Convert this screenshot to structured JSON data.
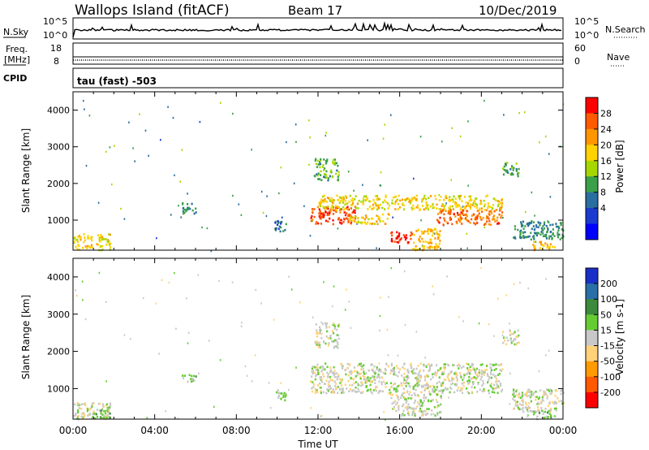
{
  "header": {
    "station": "Wallops Island (fitACF)",
    "beam": "Beam 17",
    "date": "10/Dec/2019"
  },
  "nsky_panel": {
    "left_label": "N.Sky",
    "left_ticks": [
      "10^5",
      "10^0"
    ],
    "right_ticks": [
      "10^5",
      "10^0"
    ],
    "right_label": "N.Search"
  },
  "freq_panel": {
    "left_label_1": "Freq.",
    "left_label_2": "[MHz]",
    "left_ticks": [
      "18",
      "8"
    ],
    "right_ticks": [
      "60",
      "0"
    ],
    "right_label": "Nave"
  },
  "cpid_panel": {
    "left_label": "CPID",
    "text": "tau (fast) -503"
  },
  "power_panel": {
    "ylabel": "Slant Range [km]",
    "colorbar_label": "Power [dB]",
    "colorbar_ticks": [
      "28",
      "24",
      "20",
      "16",
      "12",
      "8",
      "4"
    ],
    "colorbar_colors": [
      "#ff0000",
      "#ff5a00",
      "#ff9600",
      "#ffd200",
      "#a6d800",
      "#3aa04a",
      "#2a6fa0",
      "#1a3ad0",
      "#0000ff"
    ]
  },
  "velocity_panel": {
    "ylabel": "Slant Range [km]",
    "colorbar_label": "Velocity [m s-1]",
    "colorbar_ticks": [
      "200",
      "100",
      "50",
      "15",
      "-15",
      "-50",
      "-100",
      "-200"
    ],
    "colorbar_colors": [
      "#1a2fc8",
      "#2a6fa8",
      "#3c8a3c",
      "#66cc33",
      "#c8c8c8",
      "#ffd27a",
      "#ff9a00",
      "#ff5a00",
      "#ff0000"
    ]
  },
  "time_axis": {
    "xlabel": "Time UT",
    "ticks": [
      "00:00",
      "04:00",
      "08:00",
      "12:00",
      "16:00",
      "20:00",
      "00:00"
    ]
  },
  "chart_data": [
    {
      "type": "heatmap",
      "title": "Wallops Island (fitACF) Beam 17 10/Dec/2019",
      "quantity": "Power [dB]",
      "xlabel": "Time UT",
      "ylabel": "Slant Range [km]",
      "xlim_hours": [
        0,
        24
      ],
      "ylim_km": [
        180,
        4500
      ],
      "yticks": [
        1000,
        2000,
        3000,
        4000
      ],
      "clim": [
        0,
        30
      ],
      "regions": [
        {
          "t0": 0.0,
          "t1": 1.8,
          "r0": 200,
          "r1": 650,
          "value": 18
        },
        {
          "t0": 5.3,
          "t1": 6.0,
          "r0": 1200,
          "r1": 1500,
          "value": 10
        },
        {
          "t0": 9.8,
          "t1": 10.4,
          "r0": 700,
          "r1": 1000,
          "value": 8
        },
        {
          "t0": 11.6,
          "t1": 13.8,
          "r0": 900,
          "r1": 1400,
          "value": 26
        },
        {
          "t0": 12.0,
          "t1": 21.0,
          "r0": 1300,
          "r1": 1700,
          "value": 18
        },
        {
          "t0": 13.5,
          "t1": 15.5,
          "r0": 900,
          "r1": 1200,
          "value": 18
        },
        {
          "t0": 15.5,
          "t1": 16.6,
          "r0": 400,
          "r1": 700,
          "value": 27
        },
        {
          "t0": 16.6,
          "t1": 18.0,
          "r0": 200,
          "r1": 800,
          "value": 20
        },
        {
          "t0": 17.8,
          "t1": 21.0,
          "r0": 900,
          "r1": 1300,
          "value": 24
        },
        {
          "t0": 11.8,
          "t1": 13.0,
          "r0": 2100,
          "r1": 2700,
          "value": 13
        },
        {
          "t0": 21.0,
          "t1": 21.8,
          "r0": 2200,
          "r1": 2600,
          "value": 12
        },
        {
          "t0": 21.5,
          "t1": 24.0,
          "r0": 500,
          "r1": 1000,
          "value": 10
        },
        {
          "t0": 22.5,
          "t1": 23.6,
          "r0": 200,
          "r1": 450,
          "value": 20
        }
      ]
    },
    {
      "type": "heatmap",
      "quantity": "Velocity [m s-1]",
      "xlabel": "Time UT",
      "ylabel": "Slant Range [km]",
      "xlim_hours": [
        0,
        24
      ],
      "ylim_km": [
        180,
        4500
      ],
      "yticks": [
        1000,
        2000,
        3000,
        4000
      ],
      "clim": [
        -200,
        200
      ],
      "regions": [
        {
          "t0": 0.0,
          "t1": 1.8,
          "r0": 200,
          "r1": 650,
          "value": 0
        },
        {
          "t0": 0.8,
          "t1": 1.8,
          "r0": 200,
          "r1": 450,
          "value": 30
        },
        {
          "t0": 5.3,
          "t1": 6.0,
          "r0": 1200,
          "r1": 1400,
          "value": 30
        },
        {
          "t0": 9.8,
          "t1": 10.4,
          "r0": 700,
          "r1": 1000,
          "value": 30
        },
        {
          "t0": 11.6,
          "t1": 21.0,
          "r0": 900,
          "r1": 1700,
          "value": 0
        },
        {
          "t0": 15.5,
          "t1": 18.0,
          "r0": 300,
          "r1": 900,
          "value": 0
        },
        {
          "t0": 11.8,
          "t1": 13.0,
          "r0": 2100,
          "r1": 2800,
          "value": 0
        },
        {
          "t0": 21.0,
          "t1": 21.8,
          "r0": 2200,
          "r1": 2600,
          "value": 0
        },
        {
          "t0": 21.5,
          "t1": 24.0,
          "r0": 400,
          "r1": 1000,
          "value": 0
        },
        {
          "t0": 22.5,
          "t1": 23.6,
          "r0": 200,
          "r1": 450,
          "value": 30
        }
      ]
    }
  ]
}
